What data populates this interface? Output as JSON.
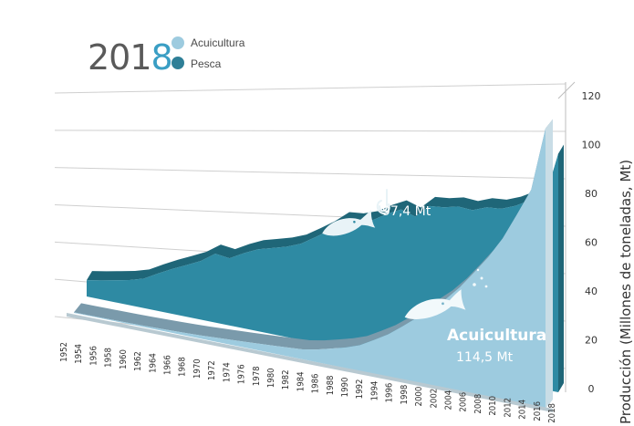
{
  "header": {
    "year_prefix": "201",
    "year_last_digit": "8"
  },
  "legend": {
    "items": [
      {
        "label": "Acuicultura",
        "color": "#9dcbdf"
      },
      {
        "label": "Pesca",
        "color": "#2e7f97"
      }
    ]
  },
  "annotations": {
    "pesca_label": "Pesca",
    "pesca_value": "97,4 Mt",
    "acui_label": "Acuicultura",
    "acui_value": "114,5 Mt"
  },
  "colors": {
    "pesca": "#2e8aa3",
    "pesca_dark": "#1f6678",
    "acuicultura": "#9dcbdf",
    "acuicultura_dark": "#7a9aab",
    "accent": "#3a9ec4"
  },
  "chart_data": {
    "type": "area",
    "stacked": false,
    "ylabel": "Producción (Millones de toneladas, Mt)",
    "ylim": [
      0,
      120
    ],
    "yticks": [
      "0",
      "20",
      "40",
      "60",
      "80",
      "100",
      "120"
    ],
    "grid": true,
    "view": "3d-perspective",
    "x": [
      1952,
      1954,
      1956,
      1958,
      1960,
      1962,
      1964,
      1966,
      1968,
      1970,
      1972,
      1974,
      1976,
      1978,
      1980,
      1982,
      1984,
      1986,
      1988,
      1990,
      1992,
      1994,
      1996,
      1998,
      2000,
      2002,
      2004,
      2006,
      2008,
      2010,
      2012,
      2014,
      2016,
      2018
    ],
    "series": [
      {
        "name": "Pesca",
        "values": [
          18,
          20,
          22,
          24,
          27,
          33,
          38,
          42,
          46,
          52,
          49,
          53,
          56,
          57,
          58,
          60,
          64,
          68,
          73,
          72,
          73,
          76,
          78,
          74,
          79,
          78,
          78,
          76,
          77,
          76,
          77,
          79,
          78,
          97.4
        ]
      },
      {
        "name": "Acuicultura",
        "values": [
          0.6,
          0.7,
          0.8,
          0.9,
          1.0,
          1.2,
          1.5,
          1.8,
          2.1,
          2.5,
          3.0,
          3.5,
          4.0,
          4.5,
          5.0,
          5.5,
          6.0,
          7.5,
          9.5,
          11.5,
          14,
          18,
          22,
          27,
          32,
          37,
          42,
          48,
          55,
          62,
          70,
          80,
          90,
          114.5
        ]
      }
    ]
  }
}
